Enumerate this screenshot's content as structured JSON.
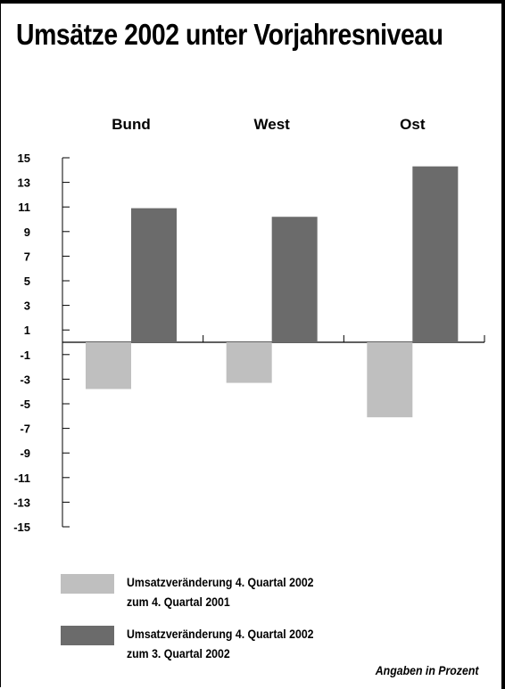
{
  "title": "Umsätze 2002 unter Vorjahresniveau",
  "note": "Angaben in Prozent",
  "colors": {
    "series_1": "#bfbfbf",
    "series_2": "#6b6b6b",
    "axis": "#000000"
  },
  "chart_data": {
    "type": "bar",
    "title": "Umsätze 2002 unter Vorjahresniveau",
    "categories": [
      "Bund",
      "West",
      "Ost"
    ],
    "y_ticks": [
      15,
      13,
      11,
      9,
      7,
      5,
      3,
      1,
      -1,
      -3,
      -5,
      -7,
      -9,
      -11,
      -13,
      -15
    ],
    "ylim": [
      -15,
      15
    ],
    "grid": false,
    "legend_position": "bottom",
    "series": [
      {
        "name": "Umsatzveränderung 4. Quartal 2002 zum 4. Quartal 2001",
        "values": [
          -3.8,
          -3.3,
          -6.1
        ],
        "color": "#bfbfbf"
      },
      {
        "name": "Umsatzveränderung 4. Quartal 2002 zum 3. Quartal 2002",
        "values": [
          10.9,
          10.2,
          14.3
        ],
        "color": "#6b6b6b"
      }
    ]
  },
  "legend": [
    {
      "line1": "Umsatzveränderung 4. Quartal 2002",
      "line2": "zum 4. Quartal 2001"
    },
    {
      "line1": "Umsatzveränderung 4. Quartal 2002",
      "line2": "zum 3. Quartal 2002"
    }
  ]
}
